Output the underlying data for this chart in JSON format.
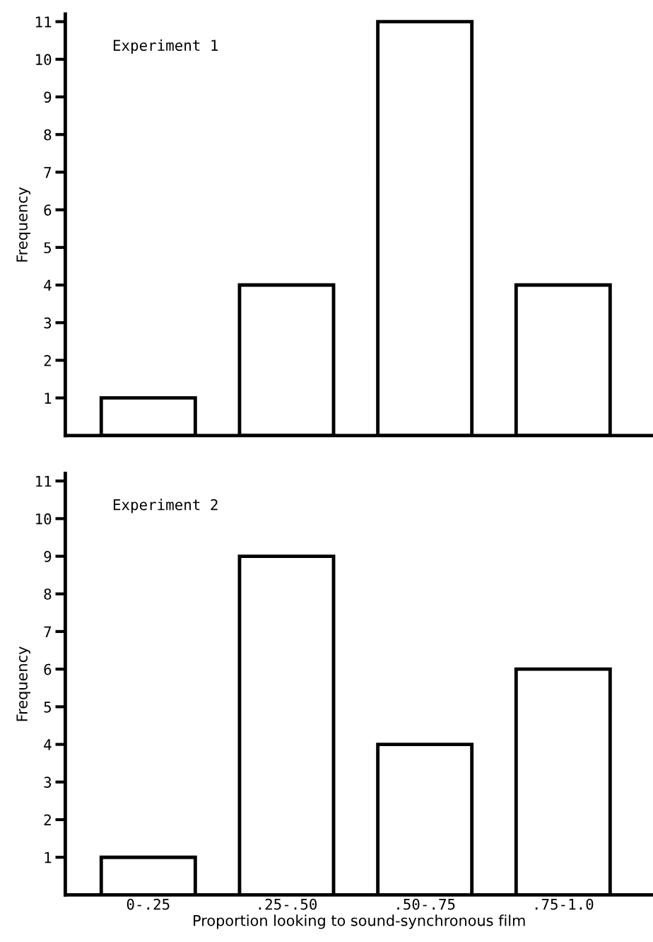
{
  "chart_data": [
    {
      "type": "bar",
      "ylabel": "Frequency",
      "annotations": [
        "Experiment 1"
      ],
      "categories": [
        null,
        null,
        null,
        null
      ],
      "values": [
        1,
        4,
        11,
        4
      ],
      "color": "#ffffff",
      "ylim": [
        0,
        11.2
      ],
      "yticks": [
        1,
        2,
        3,
        4,
        5,
        6,
        7,
        8,
        9,
        10,
        11
      ],
      "tick_labels": "y",
      "grid": false,
      "legend": false
    },
    {
      "type": "bar",
      "ylabel": "Frequency",
      "xlabel": "Proportion looking to sound-synchronous film",
      "annotations": [
        "Experiment 2"
      ],
      "categories": [
        "0-.25",
        ".25-.50",
        ".50-.75",
        ".75-1.0"
      ],
      "values": [
        1,
        9,
        4,
        6
      ],
      "color": "#ffffff",
      "ylim": [
        0,
        11.2
      ],
      "yticks": [
        1,
        2,
        3,
        4,
        5,
        6,
        7,
        8,
        9,
        10,
        11
      ],
      "grid": false,
      "legend": false
    }
  ]
}
